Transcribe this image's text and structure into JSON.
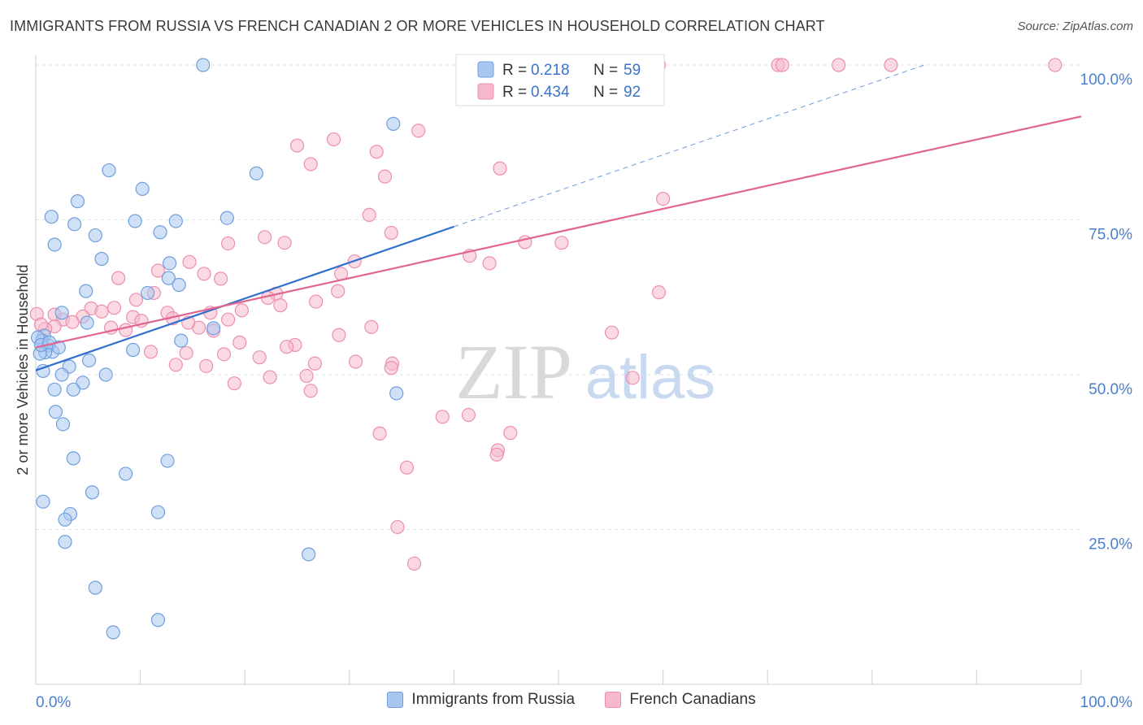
{
  "title": "IMMIGRANTS FROM RUSSIA VS FRENCH CANADIAN 2 OR MORE VEHICLES IN HOUSEHOLD CORRELATION CHART",
  "source": "Source: ZipAtlas.com",
  "watermark": {
    "zip": "ZIP",
    "atlas": "atlas"
  },
  "colors": {
    "blue_fill": "#a9c6ef",
    "blue_stroke": "#6f9fdd",
    "blue_line": "#2f6fcd",
    "pink_fill": "#f6b9cc",
    "pink_stroke": "#ec8fae",
    "pink_line": "#e0668f",
    "tick_label": "#4a7fcf",
    "grid": "#dfe3ea"
  },
  "chart_data": {
    "type": "scatter",
    "title": "IMMIGRANTS FROM RUSSIA VS FRENCH CANADIAN 2 OR MORE VEHICLES IN HOUSEHOLD CORRELATION CHART",
    "xlabel": "",
    "ylabel": "2 or more Vehicles in Household",
    "xlim": [
      0,
      100
    ],
    "ylim": [
      0,
      100
    ],
    "x_tick_labels": [
      "0.0%",
      "100.0%"
    ],
    "y_ticks": [
      25,
      50,
      75,
      100
    ],
    "y_tick_labels": [
      "25.0%",
      "50.0%",
      "75.0%",
      "100.0%"
    ],
    "grid": true,
    "legend_stats": [
      {
        "r_label": "R =",
        "r": "0.218",
        "n_label": "N =",
        "n": "59"
      },
      {
        "r_label": "R =",
        "r": "0.434",
        "n_label": "N =",
        "n": "92"
      }
    ],
    "series": [
      {
        "name": "Immigrants from Russia",
        "color": "#a9c6ef",
        "trend": {
          "x0": 0,
          "y0": 50.7,
          "x1": 40,
          "y1": 73.9,
          "dashed_to_x": 85,
          "dashed_to_y": 100
        },
        "points": [
          [
            16,
            100
          ],
          [
            34.2,
            90.5
          ],
          [
            7,
            83
          ],
          [
            10.2,
            80
          ],
          [
            21.1,
            82.5
          ],
          [
            4,
            78
          ],
          [
            3.7,
            74.3
          ],
          [
            5.7,
            72.5
          ],
          [
            9.5,
            74.8
          ],
          [
            11.9,
            73
          ],
          [
            13.4,
            74.8
          ],
          [
            1.5,
            75.5
          ],
          [
            1.8,
            71
          ],
          [
            6.3,
            68.7
          ],
          [
            12.8,
            68
          ],
          [
            18.3,
            75.3
          ],
          [
            12.7,
            65.6
          ],
          [
            13.7,
            64.5
          ],
          [
            4.8,
            63.5
          ],
          [
            10.7,
            63.2
          ],
          [
            2.5,
            60
          ],
          [
            4.9,
            58.4
          ],
          [
            0.8,
            56.3
          ],
          [
            0.6,
            55.5
          ],
          [
            1.2,
            54.7
          ],
          [
            1.6,
            53.7
          ],
          [
            0.9,
            53.6
          ],
          [
            0.4,
            53.4
          ],
          [
            13.9,
            55.5
          ],
          [
            17,
            57.5
          ],
          [
            0.7,
            50.6
          ],
          [
            5.1,
            52.3
          ],
          [
            3.2,
            51.3
          ],
          [
            9.3,
            54
          ],
          [
            2.5,
            50
          ],
          [
            4.5,
            48.7
          ],
          [
            6.7,
            50
          ],
          [
            1.8,
            47.6
          ],
          [
            34.5,
            47
          ],
          [
            3.6,
            47.6
          ],
          [
            1.9,
            44
          ],
          [
            2.6,
            42
          ],
          [
            3.6,
            36.5
          ],
          [
            8.6,
            34
          ],
          [
            12.6,
            36.1
          ],
          [
            5.4,
            31
          ],
          [
            0.7,
            29.5
          ],
          [
            11.7,
            27.8
          ],
          [
            3.3,
            27.5
          ],
          [
            2.8,
            26.6
          ],
          [
            2.8,
            23
          ],
          [
            26.1,
            21
          ],
          [
            5.7,
            15.6
          ],
          [
            11.7,
            10.4
          ],
          [
            7.4,
            8.4
          ],
          [
            0.2,
            56
          ],
          [
            0.5,
            54.8
          ],
          [
            1.3,
            55.2
          ],
          [
            2.2,
            54.4
          ]
        ]
      },
      {
        "name": "French Canadians",
        "color": "#f6b9cc",
        "trend": {
          "x0": 0,
          "y0": 54.4,
          "x1": 100,
          "y1": 91.7
        },
        "points": [
          [
            47.6,
            100
          ],
          [
            59.6,
            100
          ],
          [
            71,
            100
          ],
          [
            71.4,
            100
          ],
          [
            76.8,
            100
          ],
          [
            81.8,
            100
          ],
          [
            97.5,
            100
          ],
          [
            36.6,
            89.4
          ],
          [
            28.5,
            88
          ],
          [
            25,
            87
          ],
          [
            32.6,
            86
          ],
          [
            33.4,
            82
          ],
          [
            26.3,
            84
          ],
          [
            44.4,
            83.3
          ],
          [
            60,
            78.4
          ],
          [
            31.9,
            75.8
          ],
          [
            34,
            72.9
          ],
          [
            21.9,
            72.2
          ],
          [
            23.8,
            71.3
          ],
          [
            50.3,
            71.3
          ],
          [
            46.8,
            71.4
          ],
          [
            18.4,
            71.2
          ],
          [
            41.5,
            69.2
          ],
          [
            43.4,
            68
          ],
          [
            30.5,
            68.3
          ],
          [
            29.2,
            66.3
          ],
          [
            14.7,
            68.2
          ],
          [
            16.1,
            66.3
          ],
          [
            11.7,
            66.8
          ],
          [
            7.9,
            65.6
          ],
          [
            17.7,
            65.5
          ],
          [
            28.9,
            63.5
          ],
          [
            23,
            63.1
          ],
          [
            59.6,
            63.3
          ],
          [
            11.3,
            63.2
          ],
          [
            9.6,
            62.1
          ],
          [
            22.2,
            62.4
          ],
          [
            26.8,
            61.8
          ],
          [
            19.7,
            60.4
          ],
          [
            16.7,
            60
          ],
          [
            7.5,
            60.8
          ],
          [
            5.3,
            60.7
          ],
          [
            12.6,
            60
          ],
          [
            1.8,
            59.7
          ],
          [
            4.5,
            59.4
          ],
          [
            9.3,
            59.3
          ],
          [
            2.6,
            58.9
          ],
          [
            13.1,
            59.1
          ],
          [
            0.1,
            59.8
          ],
          [
            3.5,
            58.5
          ],
          [
            7.2,
            57.6
          ],
          [
            8.6,
            57.2
          ],
          [
            1.8,
            57.8
          ],
          [
            0.9,
            57.4
          ],
          [
            32.1,
            57.7
          ],
          [
            15.6,
            57.6
          ],
          [
            17,
            57.1
          ],
          [
            29,
            56.4
          ],
          [
            19.5,
            55.2
          ],
          [
            24.8,
            54.8
          ],
          [
            24,
            54.5
          ],
          [
            14.4,
            53.5
          ],
          [
            11,
            53.7
          ],
          [
            18,
            53.3
          ],
          [
            21.4,
            52.8
          ],
          [
            30.6,
            52.1
          ],
          [
            26.7,
            51.8
          ],
          [
            34.1,
            51.8
          ],
          [
            13.4,
            51.6
          ],
          [
            16.3,
            51.4
          ],
          [
            25.9,
            49.8
          ],
          [
            34,
            51.1
          ],
          [
            22.4,
            49.6
          ],
          [
            19,
            48.6
          ],
          [
            26.3,
            47.4
          ],
          [
            41.4,
            43.5
          ],
          [
            38.9,
            43.2
          ],
          [
            45.4,
            40.6
          ],
          [
            32.9,
            40.5
          ],
          [
            55.1,
            56.8
          ],
          [
            57.1,
            49.5
          ],
          [
            44.2,
            37.8
          ],
          [
            44.1,
            37.1
          ],
          [
            35.5,
            35
          ],
          [
            34.6,
            25.4
          ],
          [
            36.2,
            19.5
          ],
          [
            14.6,
            58.4
          ],
          [
            18.4,
            58.9
          ],
          [
            23.4,
            61.2
          ],
          [
            10.1,
            58.7
          ],
          [
            0.5,
            58.1
          ],
          [
            6.3,
            60.2
          ]
        ]
      }
    ]
  },
  "legend": {
    "series_labels": [
      "Immigrants from Russia",
      "French Canadians"
    ]
  }
}
